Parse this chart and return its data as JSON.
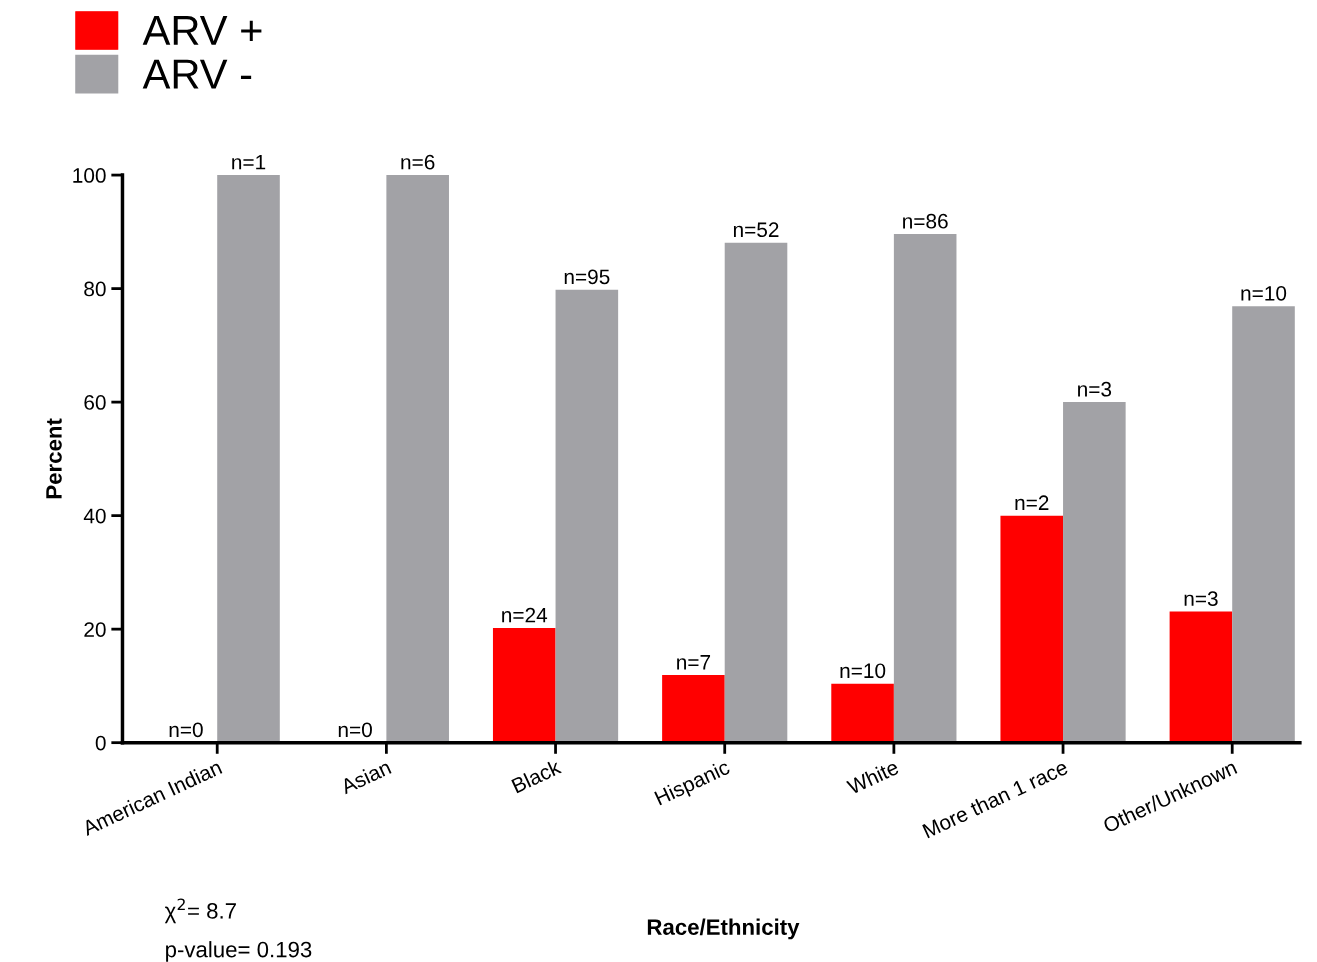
{
  "chart_data": {
    "type": "bar",
    "xlabel": "Race/Ethnicity",
    "ylabel": "Percent",
    "categories": [
      "American Indian",
      "Asian",
      "Black",
      "Hispanic",
      "White",
      "More than 1 race",
      "Other/Unknown"
    ],
    "series": [
      {
        "name": "ARV +",
        "color": "#ff0000",
        "values": [
          0,
          0,
          20.2,
          11.9,
          10.4,
          40,
          23.1
        ]
      },
      {
        "name": "ARV -",
        "color": "#a2a2a6",
        "values": [
          100,
          100,
          79.8,
          88.1,
          89.6,
          60,
          76.9
        ]
      }
    ],
    "ylim": [
      0,
      100
    ],
    "yticks": [
      0,
      20,
      40,
      60,
      80,
      100
    ],
    "grid": false,
    "legend": "top left",
    "annotations": [
      {
        "text": "n=0",
        "x": "American Indian",
        "y": 0
      },
      {
        "text": "n=1",
        "x": "American Indian",
        "y": 100
      },
      {
        "text": "n=0",
        "x": "Asian",
        "y": 0
      },
      {
        "text": "n=6",
        "x": "Asian",
        "y": 100
      },
      {
        "text": "n=24",
        "x": "Black",
        "y": 20.2
      },
      {
        "text": "n=95",
        "x": "Black",
        "y": 79.8
      },
      {
        "text": "n=7",
        "x": "Hispanic",
        "y": 11.9
      },
      {
        "text": "n=52",
        "x": "Hispanic",
        "y": 88.1
      },
      {
        "text": "n=10",
        "x": "White",
        "y": 10.4
      },
      {
        "text": "n=86",
        "x": "White",
        "y": 89.6
      },
      {
        "text": "n=2",
        "x": "More than 1 race",
        "y": 40
      },
      {
        "text": "n=3",
        "x": "More than 1 race",
        "y": 60
      },
      {
        "text": "n=3",
        "x": "Other/Unknown",
        "y": 23.1
      },
      {
        "text": "n=10",
        "x": "Other/Unknown",
        "y": 76.9
      },
      "χ$^{2}$= 8.7",
      "p-value= 0.193"
    ]
  }
}
